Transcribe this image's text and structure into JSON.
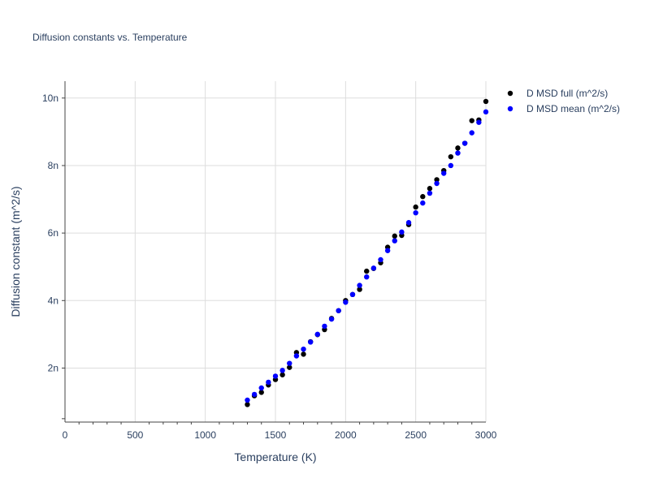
{
  "chart_data": {
    "type": "scatter",
    "title": "Diffusion constants vs. Temperature",
    "xlabel": "Temperature (K)",
    "ylabel": "Diffusion constant (m^2/s)",
    "xlim": [
      0,
      3000
    ],
    "ylim": [
      4e-10,
      1.05e-08
    ],
    "x_ticks": [
      0,
      500,
      1000,
      1500,
      2000,
      2500,
      3000
    ],
    "x_tick_labels": [
      "0",
      "500",
      "1000",
      "1500",
      "2000",
      "2500",
      "3000"
    ],
    "y_ticks": [
      2e-09,
      4e-09,
      6e-09,
      8e-09,
      1e-08
    ],
    "y_tick_labels": [
      "2n",
      "4n",
      "6n",
      "8n",
      "10n"
    ],
    "grid": true,
    "legend_position": "top-right",
    "series": [
      {
        "name": "D MSD full (m^2/s)",
        "color": "#000000",
        "x": [
          1300,
          1350,
          1400,
          1450,
          1500,
          1550,
          1600,
          1650,
          1700,
          1750,
          1800,
          1850,
          1900,
          1950,
          2000,
          2050,
          2100,
          2150,
          2200,
          2250,
          2300,
          2350,
          2400,
          2450,
          2500,
          2550,
          2600,
          2650,
          2700,
          2750,
          2800,
          2850,
          2900,
          2950,
          3000
        ],
        "y": [
          9.2e-10,
          1.18e-09,
          1.28e-09,
          1.5e-09,
          1.66e-09,
          1.8e-09,
          2.02e-09,
          2.46e-09,
          2.41e-09,
          2.78e-09,
          2.99e-09,
          3.14e-09,
          3.47e-09,
          3.7e-09,
          4e-09,
          4.18e-09,
          4.33e-09,
          4.87e-09,
          4.95e-09,
          5.12e-09,
          5.58e-09,
          5.91e-09,
          5.93e-09,
          6.25e-09,
          6.77e-09,
          7.08e-09,
          7.32e-09,
          7.58e-09,
          7.85e-09,
          8.26e-09,
          8.52e-09,
          8.66e-09,
          9.33e-09,
          9.35e-09,
          9.9e-09
        ]
      },
      {
        "name": "D MSD mean (m^2/s)",
        "color": "#0000ff",
        "x": [
          1300,
          1350,
          1400,
          1450,
          1500,
          1550,
          1600,
          1650,
          1700,
          1750,
          1800,
          1850,
          1900,
          1950,
          2000,
          2050,
          2100,
          2150,
          2200,
          2250,
          2300,
          2350,
          2400,
          2450,
          2500,
          2550,
          2600,
          2650,
          2700,
          2750,
          2800,
          2850,
          2900,
          2950,
          3000
        ],
        "y": [
          1.05e-09,
          1.22e-09,
          1.41e-09,
          1.58e-09,
          1.76e-09,
          1.93e-09,
          2.14e-09,
          2.36e-09,
          2.56e-09,
          2.77e-09,
          3e-09,
          3.24e-09,
          3.45e-09,
          3.7e-09,
          3.95e-09,
          4.18e-09,
          4.45e-09,
          4.7e-09,
          4.96e-09,
          5.21e-09,
          5.48e-09,
          5.77e-09,
          6.03e-09,
          6.31e-09,
          6.6e-09,
          6.89e-09,
          7.18e-09,
          7.47e-09,
          7.77e-09,
          8e-09,
          8.37e-09,
          8.66e-09,
          8.97e-09,
          9.28e-09,
          9.59e-09
        ]
      }
    ]
  }
}
